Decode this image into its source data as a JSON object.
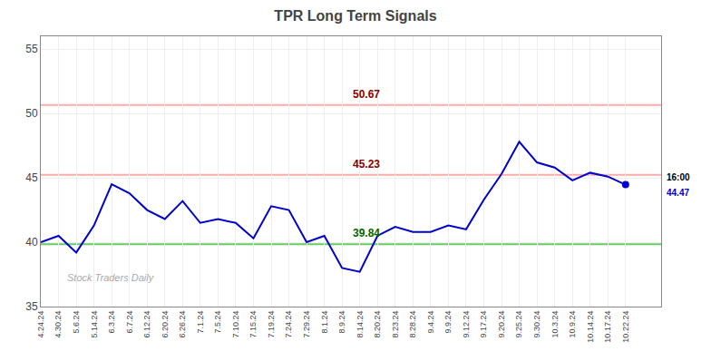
{
  "chart_data": {
    "type": "line",
    "title": "TPR Long Term Signals",
    "categories": [
      "4.24.24",
      "4.30.24",
      "5.6.24",
      "5.14.24",
      "6.3.24",
      "6.7.24",
      "6.12.24",
      "6.20.24",
      "6.26.24",
      "7.1.24",
      "7.5.24",
      "7.10.24",
      "7.15.24",
      "7.19.24",
      "7.24.24",
      "7.29.24",
      "8.1.24",
      "8.9.24",
      "8.14.24",
      "8.20.24",
      "8.23.24",
      "8.28.24",
      "9.4.24",
      "9.9.24",
      "9.12.24",
      "9.17.24",
      "9.20.24",
      "9.25.24",
      "9.30.24",
      "10.3.24",
      "10.9.24",
      "10.14.24",
      "10.17.24",
      "10.22.24"
    ],
    "values": [
      40.0,
      40.5,
      39.2,
      41.3,
      44.5,
      43.8,
      42.5,
      41.8,
      43.2,
      41.5,
      41.8,
      41.5,
      40.3,
      42.8,
      42.5,
      40.0,
      40.5,
      38.0,
      37.7,
      40.5,
      41.2,
      40.8,
      40.8,
      41.3,
      41.0,
      43.3,
      45.3,
      47.8,
      46.2,
      45.8,
      44.8,
      45.4,
      45.1,
      44.47
    ],
    "color": "#0000cc",
    "ylim": [
      35,
      56
    ],
    "yticks": [
      35,
      40,
      45,
      50,
      55
    ],
    "grid": true,
    "hlines": [
      {
        "value": 50.67,
        "label": "50.67",
        "color": "#880000",
        "line_color": "#ffaaaa"
      },
      {
        "value": 45.23,
        "label": "45.23",
        "color": "#880000",
        "line_color": "#ffaaaa"
      },
      {
        "value": 39.84,
        "label": "39.84",
        "color": "#006600",
        "line_color": "#66cc66"
      }
    ],
    "end_label": {
      "time": "16:00",
      "time_color": "#000000",
      "value": 44.47,
      "value_label": "44.47",
      "color": "#0000cc"
    },
    "watermark": {
      "text": "Stock Traders Daily",
      "color": "#aaaaaa"
    }
  }
}
